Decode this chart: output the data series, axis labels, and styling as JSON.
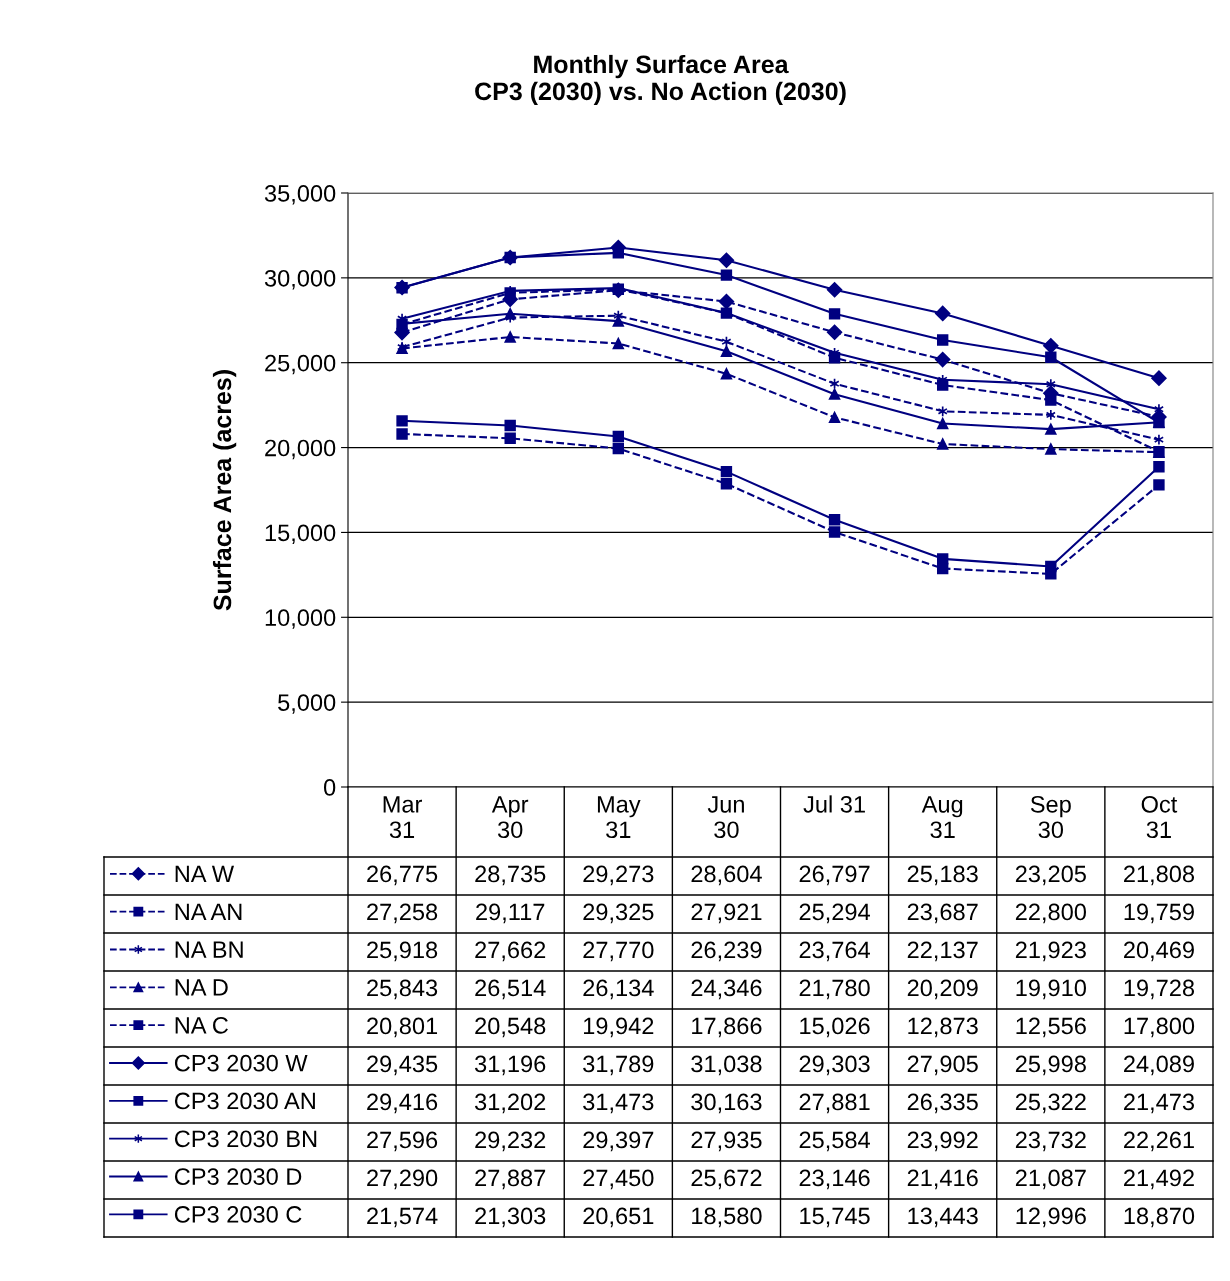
{
  "chart_data": {
    "type": "line",
    "title": "Monthly Surface Area\nCP3 (2030) vs. No Action (2030)",
    "ylabel": "Surface Area (acres)",
    "categories": [
      "Mar\n31",
      "Apr\n30",
      "May\n31",
      "Jun\n30",
      "Jul 31",
      "Aug\n31",
      "Sep\n30",
      "Oct\n31"
    ],
    "ylim": [
      0,
      35000
    ],
    "yticks": [
      {
        "value": 0,
        "label": "0"
      },
      {
        "value": 5000,
        "label": "5,000"
      },
      {
        "value": 10000,
        "label": "10,000"
      },
      {
        "value": 15000,
        "label": "15,000"
      },
      {
        "value": 20000,
        "label": "20,000"
      },
      {
        "value": 25000,
        "label": "25,000"
      },
      {
        "value": 30000,
        "label": "30,000"
      },
      {
        "value": 35000,
        "label": "35,000"
      }
    ],
    "grid": "y",
    "legend": "bottom",
    "data_labels": true,
    "series": [
      {
        "name": "NA W",
        "color": "#000080",
        "marker": "diamond",
        "line_style": "dashed",
        "values": [
          26775,
          28735,
          29273,
          28604,
          26797,
          25183,
          23205,
          21808
        ],
        "value_labels": [
          "26,775",
          "28,735",
          "29,273",
          "28,604",
          "26,797",
          "25,183",
          "23,205",
          "21,808"
        ]
      },
      {
        "name": "NA AN",
        "color": "#000080",
        "marker": "square",
        "line_style": "dashed",
        "values": [
          27258,
          29117,
          29325,
          27921,
          25294,
          23687,
          22800,
          19759
        ],
        "value_labels": [
          "27,258",
          "29,117",
          "29,325",
          "27,921",
          "25,294",
          "23,687",
          "22,800",
          "19,759"
        ]
      },
      {
        "name": "NA BN",
        "color": "#000080",
        "marker": "cross",
        "line_style": "dashed",
        "values": [
          25918,
          27662,
          27770,
          26239,
          23764,
          22137,
          21923,
          20469
        ],
        "value_labels": [
          "25,918",
          "27,662",
          "27,770",
          "26,239",
          "23,764",
          "22,137",
          "21,923",
          "20,469"
        ]
      },
      {
        "name": "NA D",
        "color": "#000080",
        "marker": "triangle",
        "line_style": "dashed",
        "values": [
          25843,
          26514,
          26134,
          24346,
          21780,
          20209,
          19910,
          19728
        ],
        "value_labels": [
          "25,843",
          "26,514",
          "26,134",
          "24,346",
          "21,780",
          "20,209",
          "19,910",
          "19,728"
        ]
      },
      {
        "name": "NA C",
        "color": "#000080",
        "marker": "square",
        "line_style": "dashed",
        "values": [
          20801,
          20548,
          19942,
          17866,
          15026,
          12873,
          12556,
          17800
        ],
        "value_labels": [
          "20,801",
          "20,548",
          "19,942",
          "17,866",
          "15,026",
          "12,873",
          "12,556",
          "17,800"
        ]
      },
      {
        "name": "CP3 2030 W",
        "color": "#000080",
        "marker": "diamond",
        "line_style": "solid",
        "values": [
          29435,
          31196,
          31789,
          31038,
          29303,
          27905,
          25998,
          24089
        ],
        "value_labels": [
          "29,435",
          "31,196",
          "31,789",
          "31,038",
          "29,303",
          "27,905",
          "25,998",
          "24,089"
        ]
      },
      {
        "name": "CP3 2030 AN",
        "color": "#000080",
        "marker": "square",
        "line_style": "solid",
        "values": [
          29416,
          31202,
          31473,
          30163,
          27881,
          26335,
          25322,
          21473
        ],
        "value_labels": [
          "29,416",
          "31,202",
          "31,473",
          "30,163",
          "27,881",
          "26,335",
          "25,322",
          "21,473"
        ]
      },
      {
        "name": "CP3 2030 BN",
        "color": "#000080",
        "marker": "cross",
        "line_style": "solid",
        "values": [
          27596,
          29232,
          29397,
          27935,
          25584,
          23992,
          23732,
          22261
        ],
        "value_labels": [
          "27,596",
          "29,232",
          "29,397",
          "27,935",
          "25,584",
          "23,992",
          "23,732",
          "22,261"
        ]
      },
      {
        "name": "CP3 2030 D",
        "color": "#000080",
        "marker": "triangle",
        "line_style": "solid",
        "values": [
          27290,
          27887,
          27450,
          25672,
          23146,
          21416,
          21087,
          21492
        ],
        "value_labels": [
          "27,290",
          "27,887",
          "27,450",
          "25,672",
          "23,146",
          "21,416",
          "21,087",
          "21,492"
        ]
      },
      {
        "name": "CP3 2030 C",
        "color": "#000080",
        "marker": "square",
        "line_style": "solid",
        "values": [
          21574,
          21303,
          20651,
          18580,
          15745,
          13443,
          12996,
          18870
        ],
        "value_labels": [
          "21,574",
          "21,303",
          "20,651",
          "18,580",
          "15,745",
          "13,443",
          "12,996",
          "18,870"
        ]
      }
    ]
  }
}
